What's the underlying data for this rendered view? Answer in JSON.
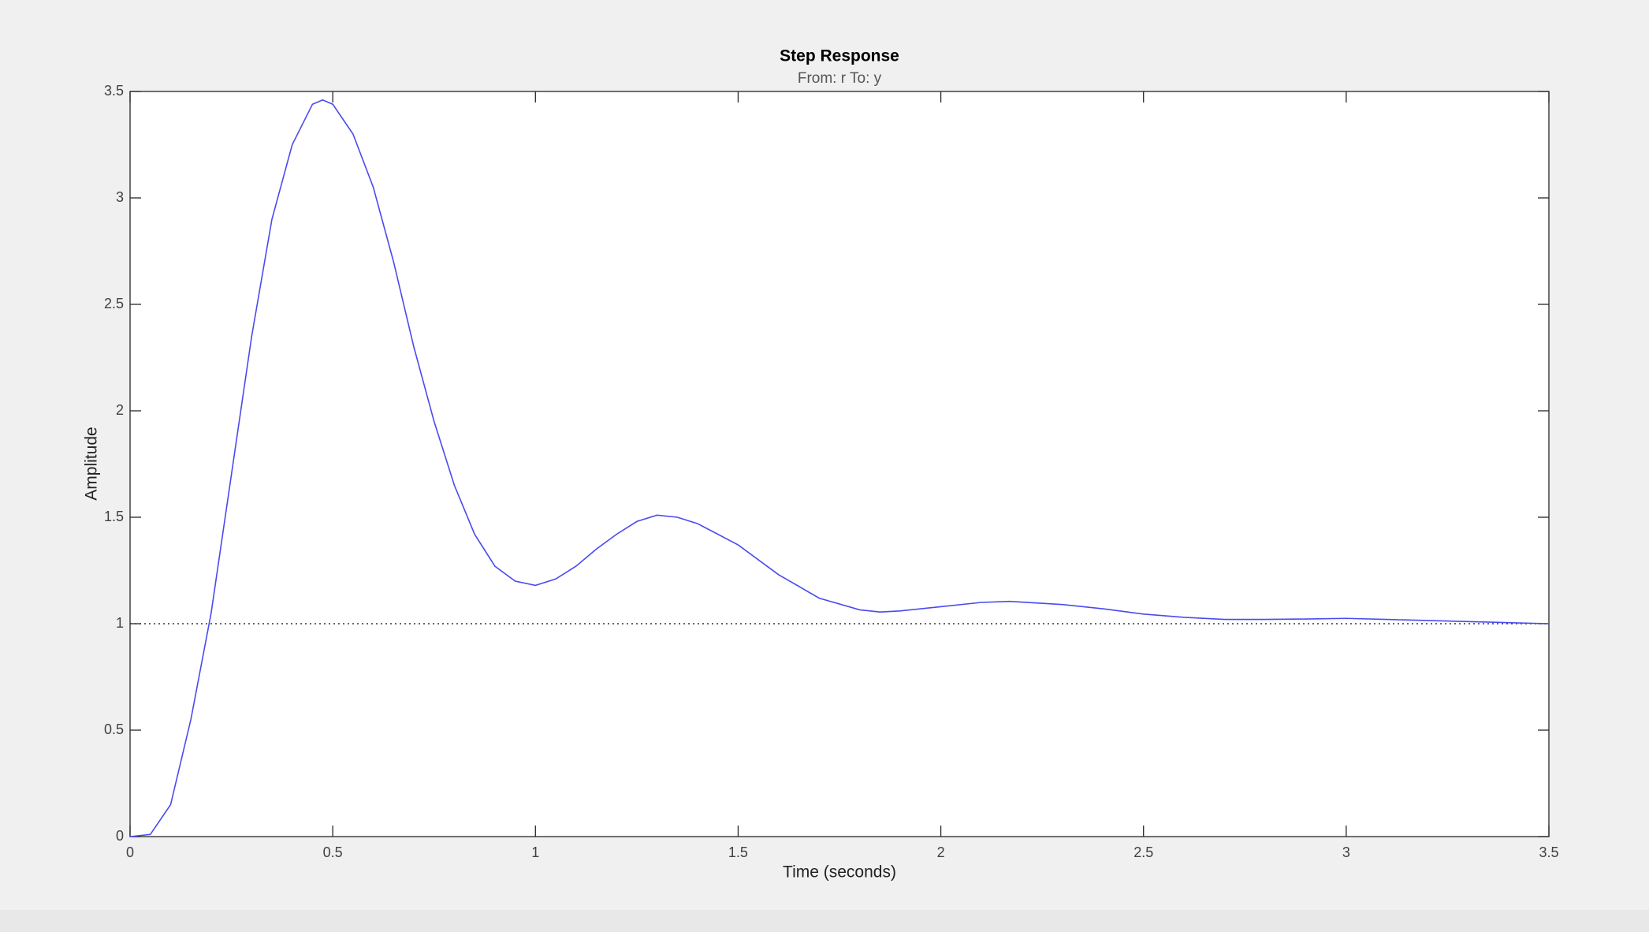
{
  "chart_data": {
    "type": "line",
    "title": "Step Response",
    "subtitle": "From: r  To: y",
    "xlabel": "Time (seconds)",
    "ylabel": "Amplitude",
    "x": [
      0,
      0.05,
      0.1,
      0.15,
      0.2,
      0.25,
      0.3,
      0.35,
      0.4,
      0.45,
      0.475,
      0.5,
      0.55,
      0.6,
      0.65,
      0.7,
      0.75,
      0.8,
      0.85,
      0.9,
      0.95,
      1.0,
      1.05,
      1.1,
      1.15,
      1.2,
      1.25,
      1.3,
      1.35,
      1.4,
      1.5,
      1.6,
      1.7,
      1.8,
      1.85,
      1.9,
      2.0,
      2.1,
      2.17,
      2.3,
      2.4,
      2.5,
      2.6,
      2.7,
      2.8,
      2.9,
      3.0,
      3.1,
      3.2,
      3.3,
      3.4,
      3.5
    ],
    "series": [
      {
        "name": "y",
        "color": "#4a4af0",
        "values": [
          0,
          0.01,
          0.15,
          0.55,
          1.05,
          1.7,
          2.35,
          2.9,
          3.25,
          3.44,
          3.46,
          3.44,
          3.3,
          3.05,
          2.7,
          2.3,
          1.95,
          1.65,
          1.42,
          1.27,
          1.2,
          1.18,
          1.21,
          1.27,
          1.35,
          1.42,
          1.48,
          1.51,
          1.5,
          1.47,
          1.37,
          1.23,
          1.12,
          1.065,
          1.055,
          1.06,
          1.08,
          1.1,
          1.105,
          1.09,
          1.07,
          1.045,
          1.03,
          1.02,
          1.02,
          1.022,
          1.025,
          1.02,
          1.015,
          1.01,
          1.005,
          1.0
        ]
      }
    ],
    "reference": 1,
    "xlim": [
      0,
      3.5
    ],
    "xticks": [
      0,
      0.5,
      1,
      1.5,
      2,
      2.5,
      3,
      3.5
    ],
    "ylim": [
      0,
      3.5
    ],
    "yticks": [
      0,
      0.5,
      1,
      1.5,
      2,
      2.5,
      3,
      3.5
    ]
  }
}
